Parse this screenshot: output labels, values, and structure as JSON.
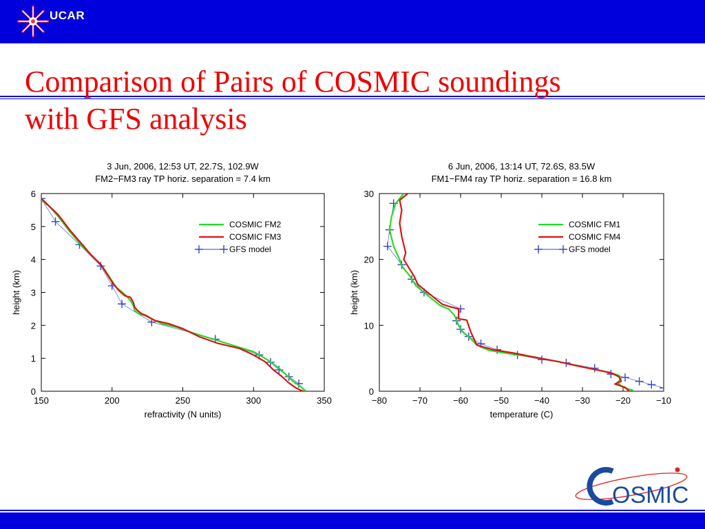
{
  "header": {
    "logo_text": "UCAR"
  },
  "slide": {
    "title_line1": "Comparison of Pairs of COSMIC soundings",
    "title_line2": "with GFS analysis"
  },
  "footer": {
    "logo_text": "OSMIC"
  },
  "colors": {
    "bar": "#0000dd",
    "title": "#ee0000",
    "series_a": "#22dd22",
    "series_b": "#dd1111",
    "model": "#3344cc"
  },
  "chart_data": [
    {
      "type": "line",
      "title": "3 Jun, 2006, 12:53 UT, 22.7S, 102.9W",
      "subtitle": "FM2−FM3 ray TP horiz. separation = 7.4 km",
      "xlabel": "refractivity (N units)",
      "ylabel": "height (km)",
      "xlim": [
        150,
        350
      ],
      "ylim": [
        0,
        6
      ],
      "xticks": [
        150,
        200,
        250,
        300,
        350
      ],
      "yticks": [
        0,
        1,
        2,
        3,
        4,
        5,
        6
      ],
      "legend_position": "top-right",
      "series": [
        {
          "name": "COSMIC FM2",
          "color": "#22dd22",
          "marker": "none",
          "points": [
            [
              150,
              5.8
            ],
            [
              156,
              5.6
            ],
            [
              162,
              5.3
            ],
            [
              170,
              4.85
            ],
            [
              178,
              4.45
            ],
            [
              186,
              4.1
            ],
            [
              193,
              3.8
            ],
            [
              197,
              3.55
            ],
            [
              200,
              3.35
            ],
            [
              203,
              3.15
            ],
            [
              206,
              3.05
            ],
            [
              210,
              2.9
            ],
            [
              213,
              2.75
            ],
            [
              215,
              2.6
            ],
            [
              216,
              2.45
            ],
            [
              219,
              2.35
            ],
            [
              223,
              2.3
            ],
            [
              228,
              2.2
            ],
            [
              235,
              2.05
            ],
            [
              245,
              1.95
            ],
            [
              255,
              1.8
            ],
            [
              270,
              1.6
            ],
            [
              285,
              1.4
            ],
            [
              300,
              1.2
            ],
            [
              310,
              0.95
            ],
            [
              318,
              0.7
            ],
            [
              323,
              0.5
            ],
            [
              328,
              0.3
            ],
            [
              333,
              0.15
            ],
            [
              337,
              0.0
            ]
          ]
        },
        {
          "name": "COSMIC FM3",
          "color": "#dd1111",
          "marker": "none",
          "points": [
            [
              150,
              5.85
            ],
            [
              156,
              5.6
            ],
            [
              162,
              5.35
            ],
            [
              170,
              4.9
            ],
            [
              178,
              4.5
            ],
            [
              185,
              4.15
            ],
            [
              192,
              3.85
            ],
            [
              195,
              3.65
            ],
            [
              198,
              3.45
            ],
            [
              201,
              3.25
            ],
            [
              205,
              3.05
            ],
            [
              209,
              2.9
            ],
            [
              213,
              2.85
            ],
            [
              215,
              2.7
            ],
            [
              216,
              2.55
            ],
            [
              218,
              2.45
            ],
            [
              221,
              2.35
            ],
            [
              224,
              2.3
            ],
            [
              230,
              2.15
            ],
            [
              240,
              2.05
            ],
            [
              250,
              1.9
            ],
            [
              262,
              1.65
            ],
            [
              275,
              1.45
            ],
            [
              290,
              1.3
            ],
            [
              300,
              1.1
            ],
            [
              308,
              0.9
            ],
            [
              314,
              0.65
            ],
            [
              320,
              0.45
            ],
            [
              325,
              0.25
            ],
            [
              330,
              0.1
            ],
            [
              335,
              0.0
            ]
          ]
        },
        {
          "name": "GFS model",
          "color": "#3344cc",
          "marker": "plus",
          "points": [
            [
              150,
              5.85
            ],
            [
              160,
              5.15
            ],
            [
              177,
              4.45
            ],
            [
              192,
              3.8
            ],
            [
              200,
              3.2
            ],
            [
              207,
              2.65
            ],
            [
              228,
              2.1
            ],
            [
              273,
              1.58
            ],
            [
              304,
              1.1
            ],
            [
              312,
              0.88
            ],
            [
              318,
              0.65
            ],
            [
              325,
              0.44
            ],
            [
              332,
              0.23
            ]
          ]
        }
      ]
    },
    {
      "type": "line",
      "title": "6 Jun, 2006, 13:14 UT, 72.6S, 83.5W",
      "subtitle": "FM1−FM4 ray TP horiz. separation = 16.8 km",
      "xlabel": "temperature (C)",
      "ylabel": "height (km)",
      "xlim": [
        -80,
        -10
      ],
      "ylim": [
        0,
        30
      ],
      "xticks": [
        -80,
        -70,
        -60,
        -50,
        -40,
        -30,
        -20,
        -10
      ],
      "yticks": [
        0,
        10,
        20,
        30
      ],
      "legend_position": "top-right",
      "series": [
        {
          "name": "COSMIC FM1",
          "color": "#22dd22",
          "marker": "none",
          "points": [
            [
              -74,
              30
            ],
            [
              -76,
              28.5
            ],
            [
              -77,
              26.5
            ],
            [
              -77.5,
              24.5
            ],
            [
              -76.5,
              22
            ],
            [
              -75,
              20
            ],
            [
              -74.5,
              19
            ],
            [
              -72.5,
              17.5
            ],
            [
              -71,
              16
            ],
            [
              -69,
              15
            ],
            [
              -67,
              14
            ],
            [
              -65,
              13
            ],
            [
              -63,
              12.5
            ],
            [
              -61.5,
              11.5
            ],
            [
              -60.5,
              10
            ],
            [
              -59.5,
              9
            ],
            [
              -57.5,
              8
            ],
            [
              -56,
              7
            ],
            [
              -53,
              6.2
            ],
            [
              -48,
              5.7
            ],
            [
              -42,
              5.2
            ],
            [
              -36,
              4.5
            ],
            [
              -30,
              3.7
            ],
            [
              -26,
              3.2
            ],
            [
              -23,
              2.8
            ],
            [
              -21,
              2.4
            ],
            [
              -20.5,
              1.8
            ],
            [
              -21.5,
              1.3
            ],
            [
              -20,
              0.6
            ],
            [
              -17.5,
              0.1
            ]
          ]
        },
        {
          "name": "COSMIC FM4",
          "color": "#dd1111",
          "marker": "none",
          "points": [
            [
              -73,
              30
            ],
            [
              -75,
              29
            ],
            [
              -74.5,
              27.5
            ],
            [
              -75,
              25.5
            ],
            [
              -74.5,
              23.5
            ],
            [
              -73.5,
              21
            ],
            [
              -74,
              20
            ],
            [
              -73,
              19
            ],
            [
              -71.5,
              17.5
            ],
            [
              -70.5,
              16.2
            ],
            [
              -68.5,
              15.2
            ],
            [
              -66.5,
              14.2
            ],
            [
              -64.5,
              13.2
            ],
            [
              -62.5,
              12.8
            ],
            [
              -60.5,
              12.5
            ],
            [
              -60.5,
              11
            ],
            [
              -58.5,
              10.8
            ],
            [
              -57.5,
              9
            ],
            [
              -56,
              7
            ],
            [
              -52,
              6.3
            ],
            [
              -47,
              5.8
            ],
            [
              -42,
              5.2
            ],
            [
              -36,
              4.5
            ],
            [
              -31,
              3.8
            ],
            [
              -27,
              3.3
            ],
            [
              -23,
              2.8
            ],
            [
              -21,
              2.2
            ],
            [
              -20.5,
              1.5
            ],
            [
              -22,
              1.1
            ],
            [
              -19.5,
              0.6
            ],
            [
              -18.5,
              0.0
            ]
          ]
        },
        {
          "name": "GFS model",
          "color": "#3344cc",
          "marker": "plus",
          "points": [
            [
              -76.5,
              28.5
            ],
            [
              -77.5,
              24.5
            ],
            [
              -78,
              22
            ],
            [
              -74.5,
              19.2
            ],
            [
              -72,
              17
            ],
            [
              -69,
              15
            ],
            [
              -60,
              12.5
            ],
            [
              -61,
              10.7
            ],
            [
              -60,
              9.4
            ],
            [
              -58,
              8.3
            ],
            [
              -55,
              7.2
            ],
            [
              -51,
              6.3
            ],
            [
              -46,
              5.5
            ],
            [
              -40,
              4.8
            ],
            [
              -34,
              4.3
            ],
            [
              -27,
              3.5
            ],
            [
              -23,
              2.6
            ],
            [
              -19.5,
              2.1
            ],
            [
              -16,
              1.5
            ],
            [
              -13,
              1.0
            ],
            [
              -10,
              0.5
            ]
          ]
        }
      ]
    }
  ]
}
